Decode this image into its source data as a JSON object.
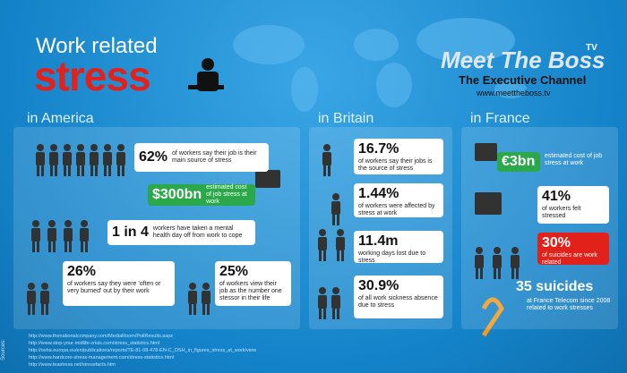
{
  "header": {
    "title_line1": "Work related",
    "title_line2": "stress"
  },
  "logo": {
    "name": "Meet The Boss",
    "tv": "TV",
    "tagline": "The Executive Channel",
    "url": "www.meettheboss.tv"
  },
  "sections": [
    {
      "heading": "in America",
      "stats": [
        {
          "value": "62%",
          "text": "of workers say their job is their main source of stress"
        },
        {
          "value": "$300bn",
          "text": "estimated cost of job stress at work"
        },
        {
          "value": "1 in 4",
          "text": "workers have taken a mental health day off from work to cope"
        },
        {
          "value": "26%",
          "text": "of workers say they were 'often or very burned' out by their work"
        },
        {
          "value": "25%",
          "text": "of workers view their job as the number one stessor in their life"
        }
      ]
    },
    {
      "heading": "in Britain",
      "stats": [
        {
          "value": "16.7%",
          "text": "of workers say their jobs is the source of stress"
        },
        {
          "value": "1.44%",
          "text": "of workers were affected by stress at work"
        },
        {
          "value": "11.4m",
          "text": "working days lost due to stress"
        },
        {
          "value": "30.9%",
          "text": "of all work sickness absence due to stress"
        }
      ]
    },
    {
      "heading": "in France",
      "stats": [
        {
          "value": "€3bn",
          "text": "estimated cost of job stress at work"
        },
        {
          "value": "41%",
          "text": "of workers felt stressed"
        },
        {
          "value": "30%",
          "text": "of suicides are work related"
        },
        {
          "value": "35 suicides",
          "text": "at France Telecom since 2008 related to work stresses"
        }
      ]
    }
  ],
  "sources": {
    "label": "Sources:",
    "links": [
      "http://www.thenationalcompany.com/MediaRoom/PollResults.aspx",
      "http://www.stop-your-midlife-crisis.com/stress_statistics.html",
      "http://osha.europa.eu/en/publications/reports/TE-81-08-478-EN-C_OSH_in_figures_stress_at_work/view",
      "http://www.hardcore-stress-management.com/stress-statistics.html",
      "http://www.teastress.net/stressfacts.htm"
    ]
  }
}
